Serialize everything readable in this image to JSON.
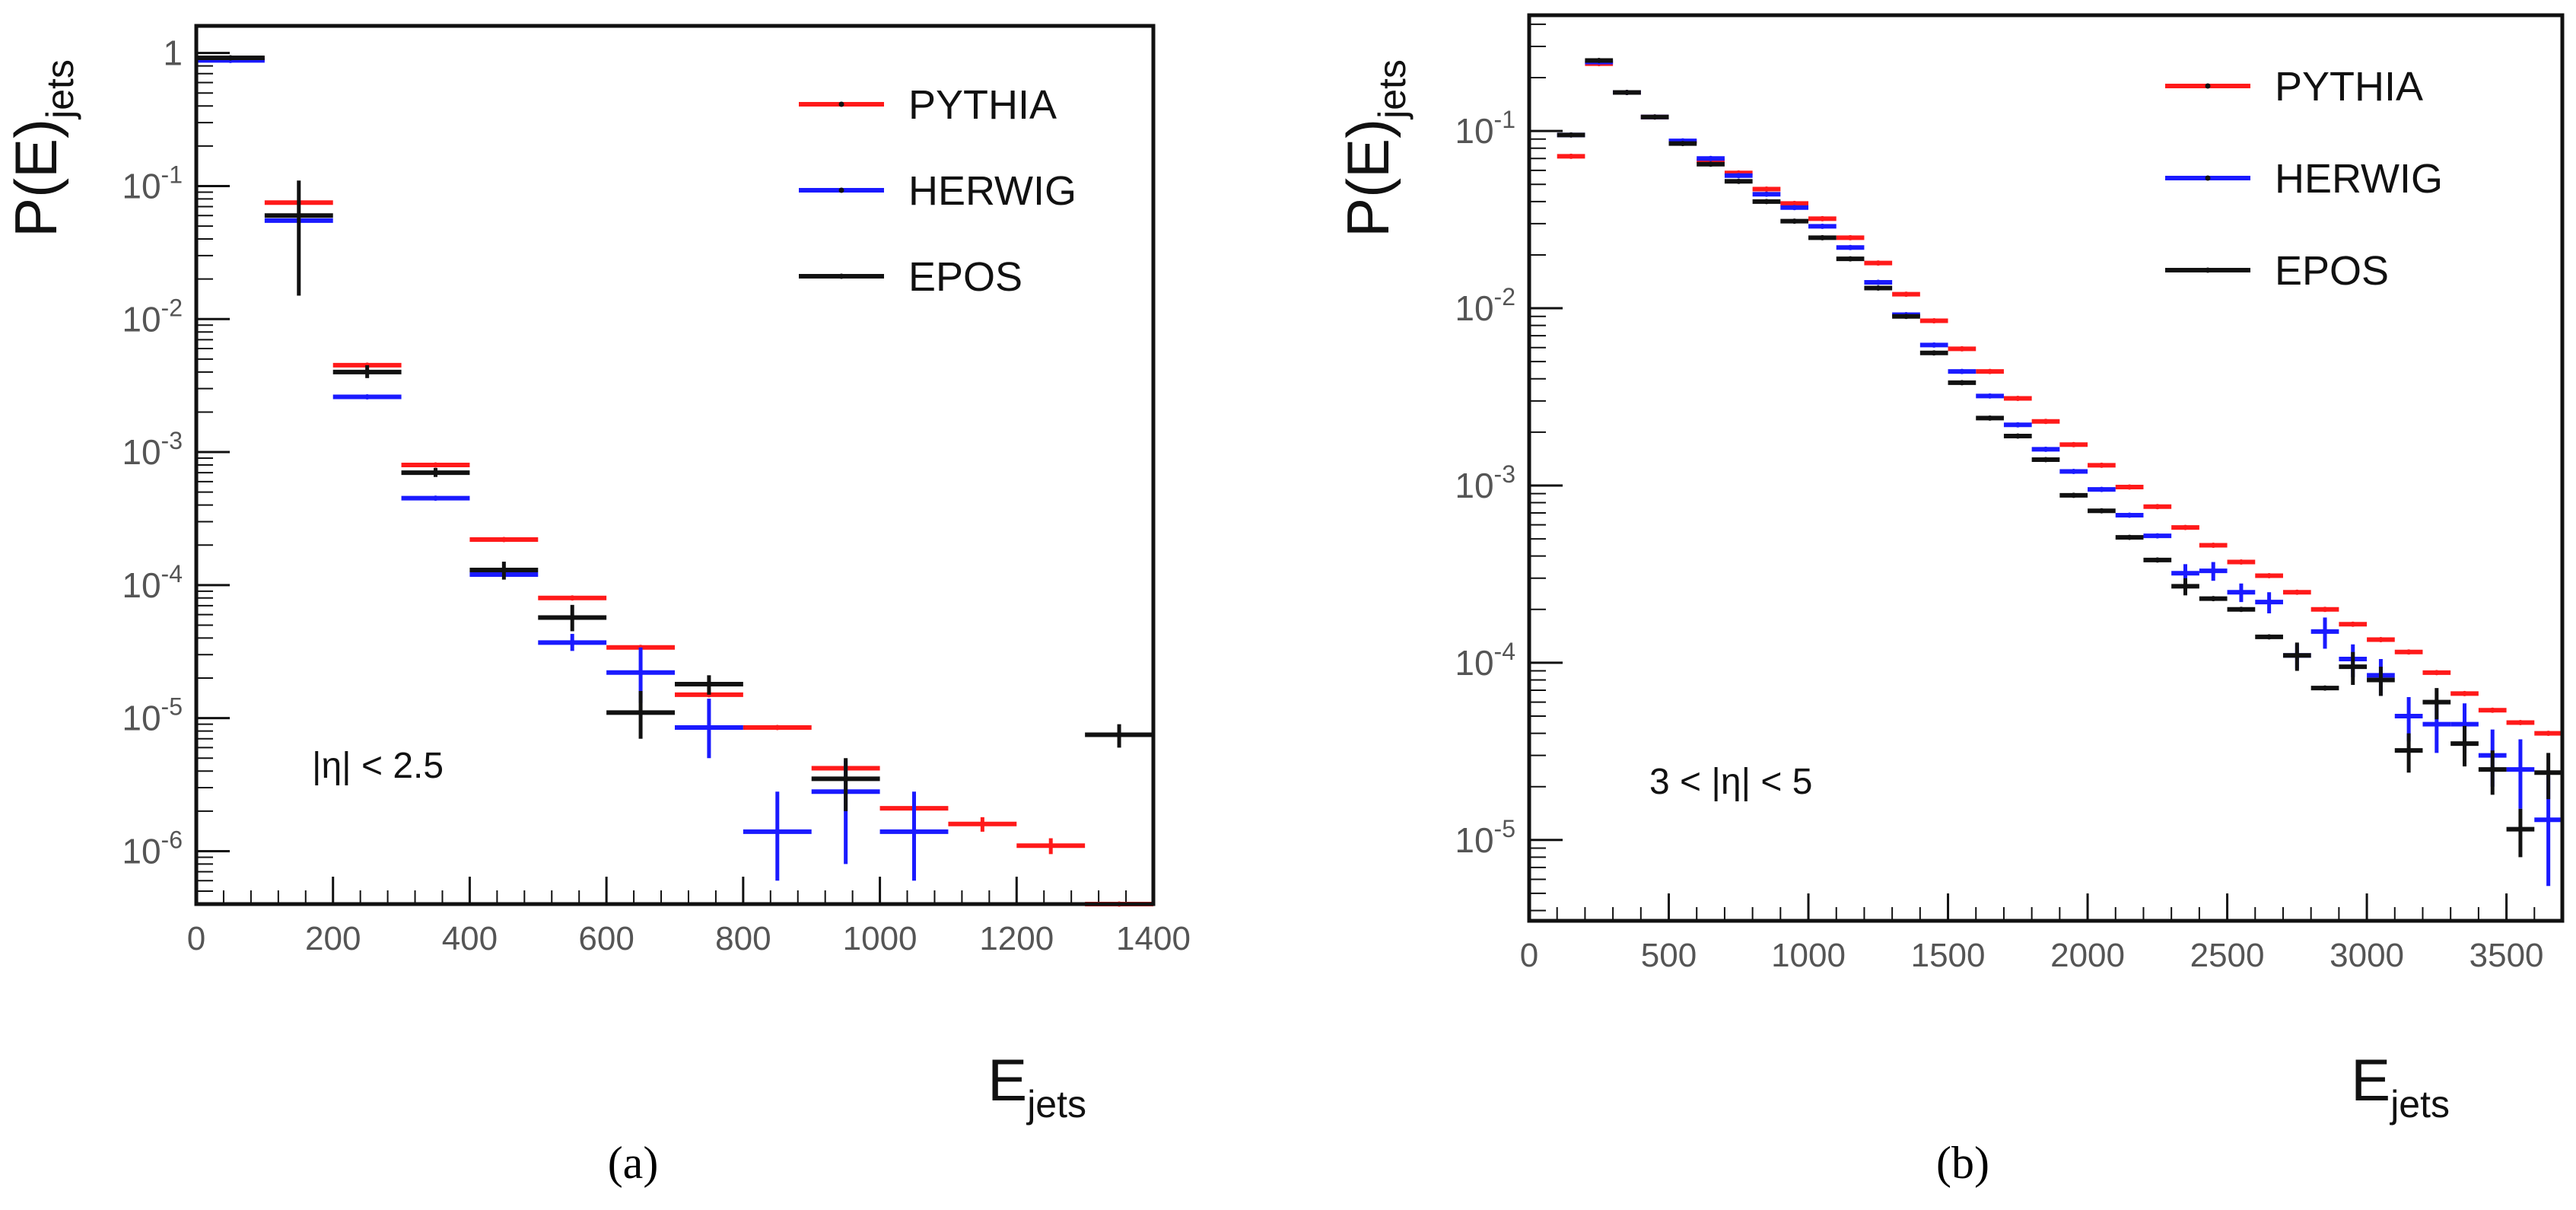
{
  "colors": {
    "pythia": "#ff1a1a",
    "herwig": "#1a1aff",
    "epos": "#111111",
    "frame": "#111111",
    "tick_label": "#555555"
  },
  "legend": [
    {
      "series": "pythia",
      "label": "PYTHIA"
    },
    {
      "series": "herwig",
      "label": "HERWIG"
    },
    {
      "series": "epos",
      "label": "EPOS"
    }
  ],
  "chart_data": [
    {
      "type": "scatter",
      "panel_label": "(a)",
      "ylabel_main": "P(E)",
      "ylabel_sub": "jets",
      "xlabel_main": "E",
      "xlabel_sub": "jets",
      "annotation": "|η| < 2.5",
      "xlim": [
        0,
        1400
      ],
      "ylim": [
        4e-07,
        1.6
      ],
      "yscale": "log",
      "bin_width": 100,
      "x_ticks": [
        0,
        200,
        400,
        600,
        800,
        1000,
        1200,
        1400
      ],
      "x_tick_labels": [
        "0",
        "200",
        "400",
        "600",
        "800",
        "1000",
        "1200",
        "1400"
      ],
      "y_ticks": [
        1e-06,
        1e-05,
        0.0001,
        0.001,
        0.01,
        0.1,
        1
      ],
      "y_tick_labels": [
        {
          "base": "10",
          "exp": "-6"
        },
        {
          "base": "10",
          "exp": "-5"
        },
        {
          "base": "10",
          "exp": "-4"
        },
        {
          "base": "10",
          "exp": "-3"
        },
        {
          "base": "10",
          "exp": "-2"
        },
        {
          "base": "10",
          "exp": "-1"
        },
        {
          "base": "1",
          "exp": ""
        }
      ],
      "series": [
        {
          "key": "pythia",
          "name": "PYTHIA",
          "x": [
            50,
            150,
            250,
            350,
            450,
            550,
            650,
            750,
            850,
            950,
            1050,
            1150,
            1250,
            1350
          ],
          "y": [
            0.9,
            0.075,
            0.0045,
            0.0008,
            0.00022,
            8e-05,
            3.4e-05,
            1.5e-05,
            8.5e-06,
            4.2e-06,
            2.1e-06,
            1.6e-06,
            1.1e-06,
            4e-07
          ],
          "y_err_low": [
            0,
            0,
            0,
            0,
            0,
            0,
            0,
            0,
            0,
            0,
            0,
            2e-07,
            1.5e-07,
            0
          ],
          "y_err_high": [
            0,
            0,
            0,
            0,
            0,
            0,
            0,
            0,
            0,
            0,
            0,
            2e-07,
            1.5e-07,
            0
          ]
        },
        {
          "key": "herwig",
          "name": "HERWIG",
          "x": [
            50,
            150,
            250,
            350,
            450,
            550,
            650,
            750,
            850,
            950,
            1050
          ],
          "y": [
            0.88,
            0.055,
            0.0026,
            0.00045,
            0.00012,
            3.7e-05,
            2.2e-05,
            8.5e-06,
            1.4e-06,
            2.8e-06,
            1.4e-06
          ],
          "y_err_low": [
            0,
            0,
            0,
            0,
            0,
            5e-06,
            9e-06,
            3.5e-06,
            8e-07,
            2e-06,
            8e-07
          ],
          "y_err_high": [
            0,
            0,
            0,
            0,
            0,
            6e-06,
            1.2e-05,
            5.5e-06,
            1.4e-06,
            2e-06,
            1.4e-06
          ]
        },
        {
          "key": "epos",
          "name": "EPOS",
          "x": [
            50,
            150,
            250,
            350,
            450,
            550,
            650,
            750,
            950,
            1350
          ],
          "y": [
            0.92,
            0.06,
            0.004,
            0.0007,
            0.00013,
            5.7e-05,
            1.1e-05,
            1.8e-05,
            3.5e-06,
            7.5e-06
          ],
          "y_err_low": [
            0,
            0.045,
            0.0004,
            5e-05,
            2e-05,
            1.2e-05,
            4e-06,
            3e-06,
            1.5e-06,
            1.5e-06
          ],
          "y_err_high": [
            0,
            0.05,
            0.0005,
            6e-05,
            2e-05,
            1.4e-05,
            5e-06,
            3e-06,
            1.5e-06,
            1.5e-06
          ]
        }
      ]
    },
    {
      "type": "scatter",
      "panel_label": "(b)",
      "ylabel_main": "P(E)",
      "ylabel_sub": "jets",
      "xlabel_main": "E",
      "xlabel_sub": "jets",
      "annotation": "3 < |η| < 5",
      "xlim": [
        0,
        3700
      ],
      "ylim": [
        3.5e-06,
        0.45
      ],
      "yscale": "log",
      "bin_width": 100,
      "x_ticks": [
        0,
        500,
        1000,
        1500,
        2000,
        2500,
        3000,
        3500
      ],
      "x_tick_labels": [
        "0",
        "500",
        "1000",
        "1500",
        "2000",
        "2500",
        "3000",
        "3500"
      ],
      "y_ticks": [
        1e-05,
        0.0001,
        0.001,
        0.01,
        0.1
      ],
      "y_tick_labels": [
        {
          "base": "10",
          "exp": "-5"
        },
        {
          "base": "10",
          "exp": "-4"
        },
        {
          "base": "10",
          "exp": "-3"
        },
        {
          "base": "10",
          "exp": "-2"
        },
        {
          "base": "10",
          "exp": "-1"
        }
      ],
      "series": [
        {
          "key": "pythia",
          "name": "PYTHIA",
          "x": [
            150,
            250,
            350,
            450,
            550,
            650,
            750,
            850,
            950,
            1050,
            1150,
            1250,
            1350,
            1450,
            1550,
            1650,
            1750,
            1850,
            1950,
            2050,
            2150,
            2250,
            2350,
            2450,
            2550,
            2650,
            2750,
            2850,
            2950,
            3050,
            3150,
            3250,
            3350,
            3450,
            3550,
            3650
          ],
          "y": [
            0.072,
            0.24,
            0.165,
            0.12,
            0.087,
            0.068,
            0.058,
            0.047,
            0.039,
            0.032,
            0.025,
            0.018,
            0.012,
            0.0085,
            0.0059,
            0.0044,
            0.0031,
            0.0023,
            0.0017,
            0.0013,
            0.00098,
            0.00076,
            0.00058,
            0.00046,
            0.00037,
            0.00031,
            0.00025,
            0.0002,
            0.000165,
            0.000135,
            0.000115,
            8.8e-05,
            6.7e-05,
            5.4e-05,
            4.6e-05,
            4e-05
          ],
          "y_err_low": [],
          "y_err_high": []
        },
        {
          "key": "herwig",
          "name": "HERWIG",
          "x": [
            150,
            250,
            350,
            450,
            550,
            650,
            750,
            850,
            950,
            1050,
            1150,
            1250,
            1350,
            1450,
            1550,
            1650,
            1750,
            1850,
            1950,
            2050,
            2150,
            2250,
            2350,
            2450,
            2550,
            2650,
            2750,
            2850,
            2950,
            3050,
            3150,
            3250,
            3350,
            3450,
            3550,
            3650
          ],
          "y": [
            0.095,
            0.245,
            0.165,
            0.12,
            0.088,
            0.07,
            0.056,
            0.044,
            0.037,
            0.029,
            0.022,
            0.014,
            0.0092,
            0.0062,
            0.0044,
            0.0032,
            0.0022,
            0.0016,
            0.0012,
            0.00095,
            0.00068,
            0.00052,
            0.00032,
            0.00033,
            0.00025,
            0.00022,
            0.00011,
            0.00015,
            0.000105,
            8.5e-05,
            5e-05,
            4.5e-05,
            4.5e-05,
            3e-05,
            2.5e-05,
            1.3e-05
          ],
          "y_err_low": [
            0,
            0,
            0,
            0,
            0,
            0,
            0,
            0,
            0,
            0,
            0,
            0,
            0,
            0,
            0,
            0,
            0,
            0,
            0,
            0,
            0,
            0,
            4e-05,
            4e-05,
            3e-05,
            3e-05,
            1.8e-05,
            3e-05,
            2.2e-05,
            2e-05,
            1.4e-05,
            1.4e-05,
            1.4e-05,
            1e-05,
            1e-05,
            7.5e-06
          ],
          "y_err_high": [
            0,
            0,
            0,
            0,
            0,
            0,
            0,
            0,
            0,
            0,
            0,
            0,
            0,
            0,
            0,
            0,
            0,
            0,
            0,
            0,
            0,
            0,
            4e-05,
            4e-05,
            3e-05,
            3e-05,
            1.8e-05,
            3e-05,
            2.2e-05,
            2e-05,
            1.4e-05,
            1.4e-05,
            1.4e-05,
            1.2e-05,
            1.2e-05,
            1e-05
          ]
        },
        {
          "key": "epos",
          "name": "EPOS",
          "x": [
            150,
            250,
            350,
            450,
            550,
            650,
            750,
            850,
            950,
            1050,
            1150,
            1250,
            1350,
            1450,
            1550,
            1650,
            1750,
            1850,
            1950,
            2050,
            2150,
            2250,
            2350,
            2450,
            2550,
            2650,
            2750,
            2850,
            2950,
            3050,
            3150,
            3250,
            3350,
            3450,
            3550,
            3650
          ],
          "y": [
            0.095,
            0.25,
            0.165,
            0.12,
            0.085,
            0.065,
            0.052,
            0.04,
            0.031,
            0.025,
            0.019,
            0.013,
            0.009,
            0.0056,
            0.0038,
            0.0024,
            0.0019,
            0.0014,
            0.00088,
            0.00072,
            0.00051,
            0.00038,
            0.00027,
            0.00023,
            0.0002,
            0.00014,
            0.00011,
            7.2e-05,
            9.5e-05,
            8e-05,
            3.2e-05,
            6e-05,
            3.5e-05,
            2.5e-05,
            1.15e-05,
            2.4e-05
          ],
          "y_err_low": [
            0,
            0,
            0,
            0,
            0,
            0,
            0,
            0,
            0,
            0,
            0,
            0,
            0,
            0,
            0,
            0,
            0,
            0,
            0,
            0,
            0,
            0,
            3e-05,
            0,
            0,
            0,
            2e-05,
            0,
            2e-05,
            1.5e-05,
            8e-06,
            1.2e-05,
            9e-06,
            7e-06,
            3.5e-06,
            7e-06
          ],
          "y_err_high": [
            0,
            0,
            0,
            0,
            0,
            0,
            0,
            0,
            0,
            0,
            0,
            0,
            0,
            0,
            0,
            0,
            0,
            0,
            0,
            0,
            0,
            0,
            3e-05,
            0,
            0,
            0,
            2e-05,
            0,
            2e-05,
            1.5e-05,
            8e-06,
            1.2e-05,
            9e-06,
            7e-06,
            3.5e-06,
            7e-06
          ]
        }
      ]
    }
  ]
}
